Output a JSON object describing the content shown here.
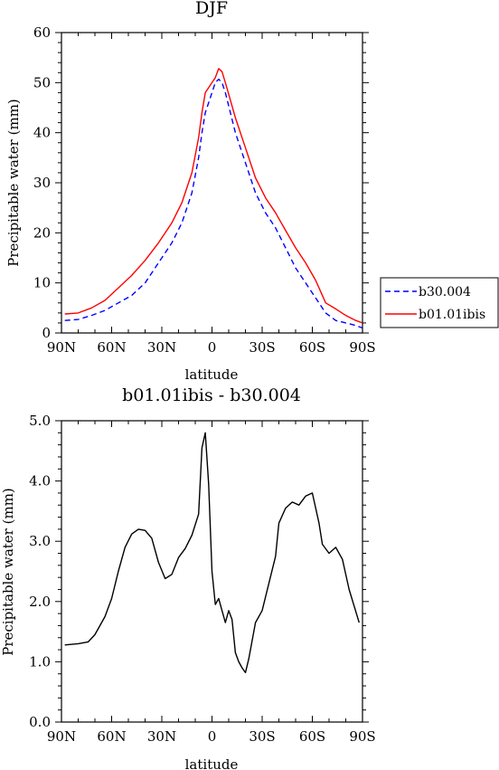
{
  "chart_data": [
    {
      "type": "line",
      "title": "DJF",
      "xlabel": "latitude",
      "ylabel": "Precipitable water (mm)",
      "xlim": [
        90,
        -90
      ],
      "ylim": [
        0,
        60
      ],
      "x_tick_labels": [
        "90N",
        "60N",
        "30N",
        "0",
        "30S",
        "60S",
        "90S"
      ],
      "y_tick_labels": [
        "0",
        "10",
        "20",
        "30",
        "40",
        "50",
        "60"
      ],
      "legend_position": "right",
      "series": [
        {
          "name": "b30.004",
          "style": "dashed",
          "color": "#0000ff",
          "x": [
            88,
            80,
            72,
            64,
            56,
            48,
            40,
            32,
            24,
            18,
            12,
            8,
            6,
            4,
            2,
            0,
            -2,
            -4,
            -6,
            -8,
            -14,
            -20,
            -26,
            -32,
            -38,
            -44,
            -50,
            -56,
            -62,
            -68,
            -74,
            -80,
            -86,
            -90
          ],
          "y": [
            2.5,
            2.7,
            3.5,
            4.5,
            6,
            7.5,
            10,
            14,
            18,
            22,
            28,
            35,
            40,
            44,
            46,
            48,
            50,
            50.7,
            50,
            48,
            40,
            34,
            28,
            24,
            21,
            17,
            13,
            10,
            7,
            4,
            2.5,
            2,
            1.5,
            1
          ]
        },
        {
          "name": "b01.01ibis",
          "style": "solid",
          "color": "#ff0000",
          "x": [
            88,
            80,
            72,
            64,
            56,
            48,
            40,
            32,
            24,
            18,
            12,
            8,
            6,
            4,
            2,
            0,
            -2,
            -4,
            -6,
            -8,
            -14,
            -20,
            -26,
            -32,
            -38,
            -44,
            -50,
            -56,
            -62,
            -68,
            -74,
            -80,
            -86,
            -90
          ],
          "y": [
            3.8,
            4,
            5,
            6.5,
            9,
            11.5,
            14.5,
            18,
            22,
            26,
            32,
            39,
            44,
            48,
            49,
            50,
            51,
            52.8,
            52.2,
            50,
            43,
            37,
            31,
            27,
            24,
            20.5,
            17,
            14,
            10.5,
            6,
            4.8,
            3.5,
            2.5,
            2
          ]
        }
      ]
    },
    {
      "type": "line",
      "title": "b01.01ibis - b30.004",
      "xlabel": "latitude",
      "ylabel": "Precipitable water (mm)",
      "xlim": [
        90,
        -90
      ],
      "ylim": [
        0,
        5
      ],
      "x_tick_labels": [
        "90N",
        "60N",
        "30N",
        "0",
        "30S",
        "60S",
        "90S"
      ],
      "y_tick_labels": [
        "0.0",
        "1.0",
        "2.0",
        "3.0",
        "4.0",
        "5.0"
      ],
      "series": [
        {
          "color": "#000000",
          "style": "solid",
          "x": [
            88,
            80,
            74,
            70,
            64,
            60,
            56,
            52,
            48,
            44,
            40,
            36,
            32,
            28,
            24,
            20,
            16,
            12,
            8,
            6,
            4,
            2,
            0,
            -2,
            -4,
            -6,
            -8,
            -10,
            -12,
            -14,
            -16,
            -18,
            -20,
            -22,
            -26,
            -30,
            -34,
            -38,
            -40,
            -44,
            -48,
            -52,
            -56,
            -60,
            -64,
            -66,
            -70,
            -74,
            -78,
            -82,
            -88
          ],
          "y": [
            1.28,
            1.3,
            1.33,
            1.45,
            1.75,
            2.05,
            2.5,
            2.9,
            3.12,
            3.2,
            3.18,
            3.05,
            2.65,
            2.38,
            2.45,
            2.73,
            2.88,
            3.1,
            3.45,
            4.55,
            4.8,
            3.95,
            2.5,
            1.95,
            2.05,
            1.85,
            1.65,
            1.85,
            1.7,
            1.15,
            1.0,
            0.9,
            0.82,
            1.05,
            1.65,
            1.85,
            2.3,
            2.75,
            3.3,
            3.55,
            3.65,
            3.6,
            3.75,
            3.8,
            3.3,
            2.95,
            2.8,
            2.9,
            2.7,
            2.2,
            1.65
          ]
        }
      ]
    }
  ]
}
